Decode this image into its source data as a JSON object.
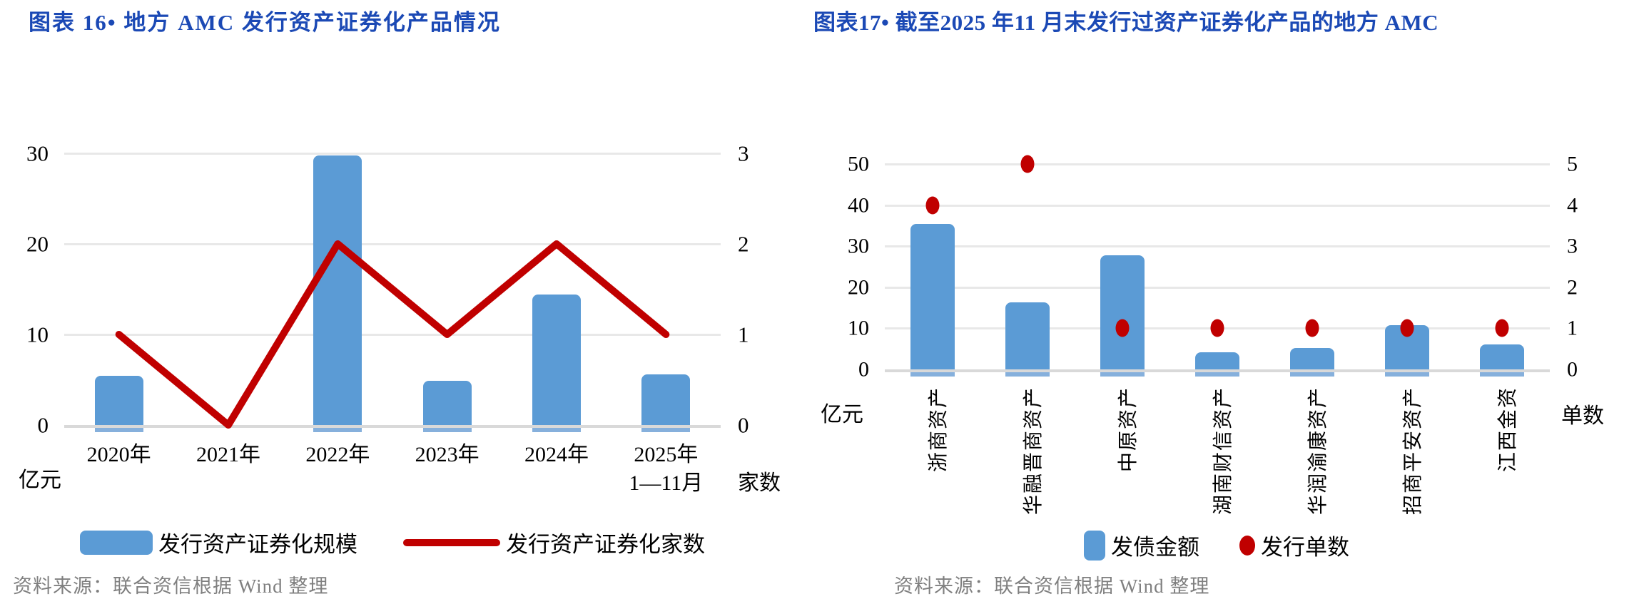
{
  "colors": {
    "bar": "#5B9BD5",
    "bar_bottom_edge": "#86B0DC",
    "line": "#C00000",
    "point": "#C00000",
    "gridline": "#E8E8E8",
    "axis_line": "#D9D9D9",
    "title_blue": "#1B49B5",
    "source_gray": "#7F7F7F",
    "text": "#000000"
  },
  "chart_data": [
    {
      "type": "bar+line",
      "title": "图表 16• 地方 AMC 发行资产证券化产品情况",
      "categories": [
        "2020年",
        "2021年",
        "2022年",
        "2023年",
        "2024年",
        "2025年"
      ],
      "category_note": {
        "index": 5,
        "text": "1—11月"
      },
      "series": [
        {
          "name": "发行资产证券化规模",
          "type": "bar",
          "axis": "left",
          "values": [
            5.4,
            0,
            29.8,
            4.9,
            14.4,
            5.6
          ]
        },
        {
          "name": "发行资产证券化家数",
          "type": "line",
          "axis": "right",
          "values": [
            1,
            0,
            2,
            1,
            2,
            1
          ]
        }
      ],
      "left_axis": {
        "title": "亿元",
        "ticks": [
          0,
          10,
          20,
          30
        ],
        "range": [
          0,
          30
        ]
      },
      "right_axis": {
        "title": "家数",
        "ticks": [
          0,
          1,
          2,
          3
        ],
        "range": [
          0,
          3
        ]
      },
      "grid": true,
      "legend_position": "bottom",
      "source": "资料来源：联合资信根据 Wind 整理"
    },
    {
      "type": "bar+scatter",
      "title": "图表17• 截至2025 年11 月末发行过资产证券化产品的地方 AMC",
      "categories": [
        "浙商资产",
        "华融晋商资产",
        "中原资产",
        "湖南财信资产",
        "华润渝康资产",
        "招商平安资产",
        "江西金资"
      ],
      "series": [
        {
          "name": "发债金额",
          "type": "bar",
          "axis": "left",
          "values": [
            35.5,
            16.4,
            27.8,
            4.2,
            5.2,
            10.8,
            6
          ]
        },
        {
          "name": "发行单数",
          "type": "point",
          "axis": "right",
          "values": [
            4,
            5,
            1,
            1,
            1,
            1,
            1
          ]
        }
      ],
      "left_axis": {
        "title": "亿元",
        "ticks": [
          0,
          10,
          20,
          30,
          40,
          50
        ],
        "range": [
          0,
          50
        ]
      },
      "right_axis": {
        "title": "单数",
        "ticks": [
          0,
          1,
          2,
          3,
          4,
          5
        ],
        "range": [
          0,
          5
        ]
      },
      "grid": true,
      "legend_position": "bottom",
      "source": "资料来源：联合资信根据 Wind 整理"
    }
  ]
}
